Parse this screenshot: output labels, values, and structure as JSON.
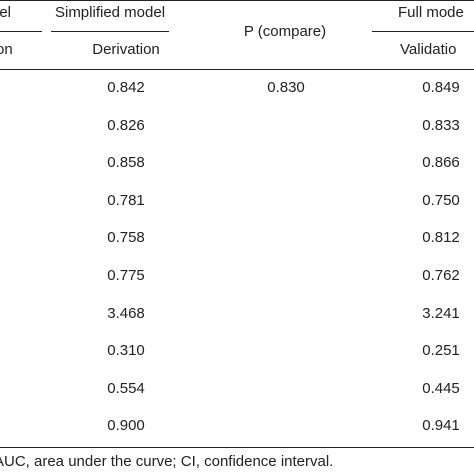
{
  "table": {
    "header_row1": {
      "model_left_partial": "lel",
      "simplified_model": "Simplified model",
      "p_compare": "P (compare)",
      "full_model_partial": "Full mode"
    },
    "header_row2": {
      "validation_left_partial": "on",
      "derivation": "Derivation",
      "validation_right_partial": "Validatio"
    },
    "rows": [
      {
        "derivation": "0.842",
        "p_compare": "0.830",
        "validation": "0.849"
      },
      {
        "derivation": "0.826",
        "p_compare": "",
        "validation": "0.833"
      },
      {
        "derivation": "0.858",
        "p_compare": "",
        "validation": "0.866"
      },
      {
        "derivation": "0.781",
        "p_compare": "",
        "validation": "0.750"
      },
      {
        "derivation": "0.758",
        "p_compare": "",
        "validation": "0.812"
      },
      {
        "derivation": "0.775",
        "p_compare": "",
        "validation": "0.762"
      },
      {
        "derivation": "3.468",
        "p_compare": "",
        "validation": "3.241"
      },
      {
        "derivation": "0.310",
        "p_compare": "",
        "validation": "0.251"
      },
      {
        "derivation": "0.554",
        "p_compare": "",
        "validation": "0.445"
      },
      {
        "derivation": "0.900",
        "p_compare": "",
        "validation": "0.941"
      }
    ]
  },
  "footnote": "AUC, area under the curve; CI, confidence interval."
}
